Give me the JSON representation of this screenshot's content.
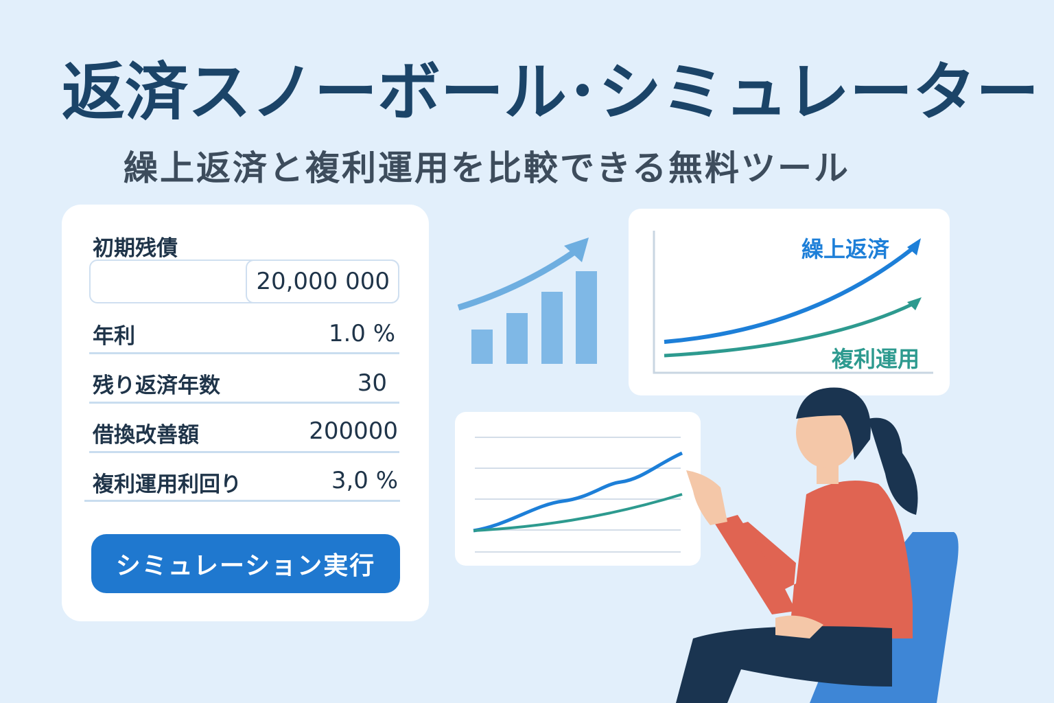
{
  "header": {
    "title": "返済スノーボール･シミュレーター",
    "subtitle": "繰上返済と複利運用を比較できる無料ツール"
  },
  "form": {
    "fields": [
      {
        "label": "初期残債",
        "value": "20,000 000"
      },
      {
        "label": "年利",
        "value": "1.0 %"
      },
      {
        "label": "残り返済年数",
        "value": "30"
      },
      {
        "label": "借換改善額",
        "value": "200000"
      },
      {
        "label": "複利運用利回り",
        "value": "3,0 %"
      }
    ],
    "button_label": "シミュレーション実行"
  },
  "comparison_chart": {
    "series": [
      {
        "name": "繰上返済",
        "color": "#1d7fd8"
      },
      {
        "name": "複利運用",
        "color": "#2d9a8f"
      }
    ]
  },
  "colors": {
    "background": "#e2effb",
    "title": "#1b4468",
    "button": "#1f78cf",
    "bars": "#7fb8e6"
  }
}
